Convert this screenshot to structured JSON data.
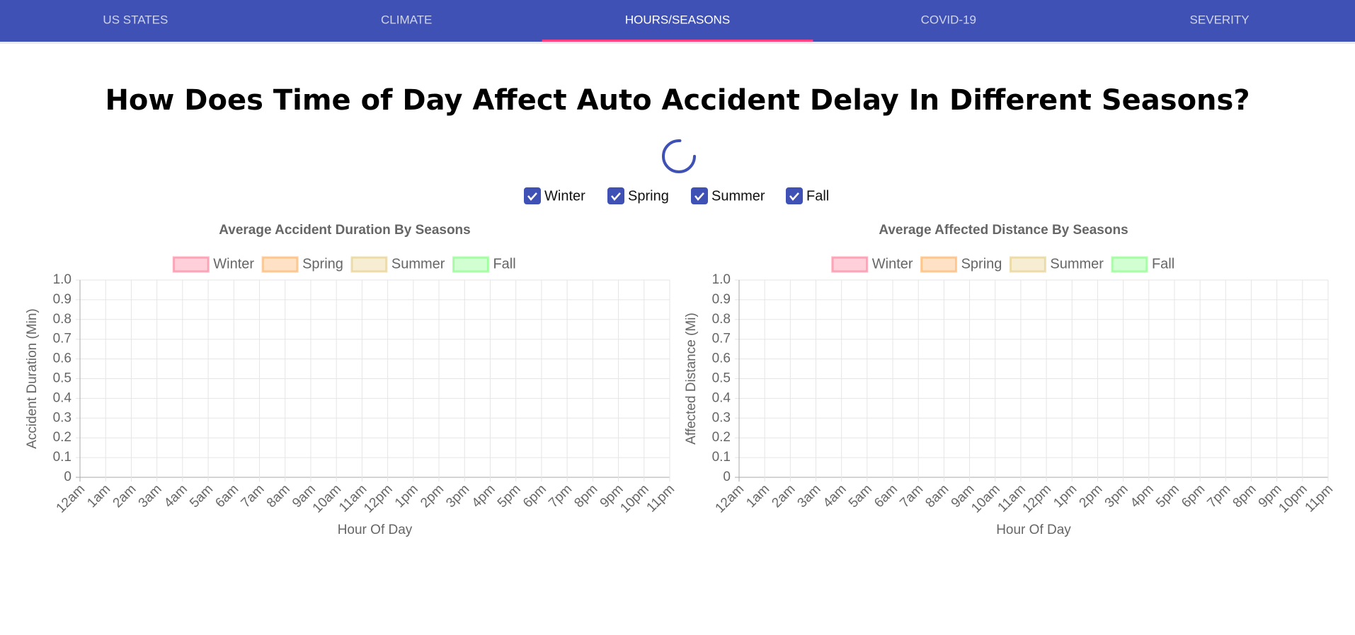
{
  "nav": {
    "tabs": [
      "US STATES",
      "CLIMATE",
      "HOURS/SEASONS",
      "COVID-19",
      "SEVERITY"
    ],
    "active": 2
  },
  "title": "How Does Time of Day Affect Auto Accident Delay In Different Seasons?",
  "filters": [
    {
      "label": "Winter",
      "checked": true
    },
    {
      "label": "Spring",
      "checked": true
    },
    {
      "label": "Summer",
      "checked": true
    },
    {
      "label": "Fall",
      "checked": true
    }
  ],
  "chart_data": [
    {
      "type": "line",
      "title": "Average Accident Duration By Seasons",
      "x_label": "Hour Of Day",
      "y_label": "Accident Duration (Min)",
      "categories": [
        "12am",
        "1am",
        "2am",
        "3am",
        "4am",
        "5am",
        "6am",
        "7am",
        "8am",
        "9am",
        "10am",
        "11am",
        "12pm",
        "1pm",
        "2pm",
        "3pm",
        "4pm",
        "5pm",
        "6pm",
        "7pm",
        "8pm",
        "9pm",
        "10pm",
        "11pm"
      ],
      "series": [
        {
          "name": "Winter",
          "color": "#ff6384"
        },
        {
          "name": "Spring",
          "color": "#ff9f40"
        },
        {
          "name": "Summer",
          "color": "#e0c46c"
        },
        {
          "name": "Fall",
          "color": "#66ff66"
        }
      ],
      "ylim": [
        0,
        1
      ],
      "yticks": [
        0,
        0.1,
        0.2,
        0.3,
        0.4,
        0.5,
        0.6,
        0.7,
        0.8,
        0.9,
        {
          "value": 1,
          "label": "1.0"
        }
      ],
      "grid": true,
      "legend": "top"
    },
    {
      "type": "line",
      "title": "Average Affected Distance By Seasons",
      "x_label": "Hour Of Day",
      "y_label": "Affected Distance (Mi)",
      "categories": [
        "12am",
        "1am",
        "2am",
        "3am",
        "4am",
        "5am",
        "6am",
        "7am",
        "8am",
        "9am",
        "10am",
        "11am",
        "12pm",
        "1pm",
        "2pm",
        "3pm",
        "4pm",
        "5pm",
        "6pm",
        "7pm",
        "8pm",
        "9pm",
        "10pm",
        "11pm"
      ],
      "series": [
        {
          "name": "Winter",
          "color": "#ff6384"
        },
        {
          "name": "Spring",
          "color": "#ff9f40"
        },
        {
          "name": "Summer",
          "color": "#e0c46c"
        },
        {
          "name": "Fall",
          "color": "#66ff66"
        }
      ],
      "ylim": [
        0,
        1
      ],
      "yticks": [
        0,
        0.1,
        0.2,
        0.3,
        0.4,
        0.5,
        0.6,
        0.7,
        0.8,
        0.9,
        {
          "value": 1,
          "label": "1.0"
        }
      ],
      "grid": true,
      "legend": "top"
    }
  ]
}
